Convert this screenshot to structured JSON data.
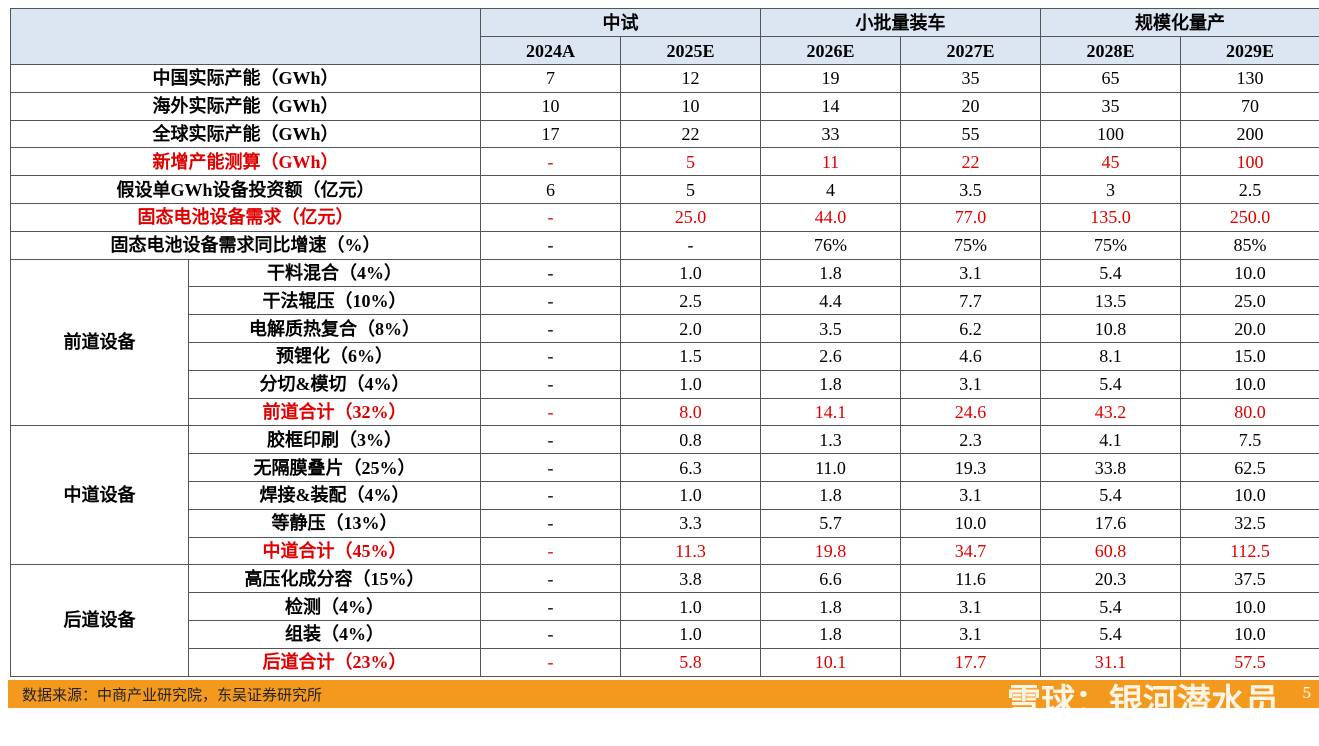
{
  "header": {
    "groups": [
      {
        "title": "中试",
        "years": [
          "2024A",
          "2025E"
        ]
      },
      {
        "title": "小批量装车",
        "years": [
          "2026E",
          "2027E"
        ]
      },
      {
        "title": "规模化量产",
        "years": [
          "2028E",
          "2029E"
        ]
      }
    ]
  },
  "table": {
    "rows": [
      {
        "label": "中国实际产能（GWh）",
        "cells": [
          "7",
          "12",
          "19",
          "35",
          "65",
          "130"
        ],
        "highlight": false
      },
      {
        "label": "海外实际产能（GWh）",
        "cells": [
          "10",
          "10",
          "14",
          "20",
          "35",
          "70"
        ],
        "highlight": false
      },
      {
        "label": "全球实际产能（GWh）",
        "cells": [
          "17",
          "22",
          "33",
          "55",
          "100",
          "200"
        ],
        "highlight": false
      },
      {
        "label": "新增产能测算（GWh）",
        "cells": [
          "-",
          "5",
          "11",
          "22",
          "45",
          "100"
        ],
        "highlight": true
      },
      {
        "label": "假设单GWh设备投资额（亿元）",
        "cells": [
          "6",
          "5",
          "4",
          "3.5",
          "3",
          "2.5"
        ],
        "highlight": false
      },
      {
        "label": "固态电池设备需求（亿元）",
        "cells": [
          "-",
          "25.0",
          "44.0",
          "77.0",
          "135.0",
          "250.0"
        ],
        "highlight": true
      },
      {
        "label": "固态电池设备需求同比增速（%）",
        "cells": [
          "-",
          "-",
          "76%",
          "75%",
          "75%",
          "85%"
        ],
        "highlight": false
      }
    ],
    "sections": [
      {
        "name": "前道设备",
        "rows": [
          {
            "label": "干料混合（4%）",
            "cells": [
              "-",
              "1.0",
              "1.8",
              "3.1",
              "5.4",
              "10.0"
            ],
            "highlight": false
          },
          {
            "label": "干法辊压（10%）",
            "cells": [
              "-",
              "2.5",
              "4.4",
              "7.7",
              "13.5",
              "25.0"
            ],
            "highlight": false
          },
          {
            "label": "电解质热复合（8%）",
            "cells": [
              "-",
              "2.0",
              "3.5",
              "6.2",
              "10.8",
              "20.0"
            ],
            "highlight": false
          },
          {
            "label": "预锂化（6%）",
            "cells": [
              "-",
              "1.5",
              "2.6",
              "4.6",
              "8.1",
              "15.0"
            ],
            "highlight": false
          },
          {
            "label": "分切&模切（4%）",
            "cells": [
              "-",
              "1.0",
              "1.8",
              "3.1",
              "5.4",
              "10.0"
            ],
            "highlight": false
          },
          {
            "label": "前道合计（32%）",
            "cells": [
              "-",
              "8.0",
              "14.1",
              "24.6",
              "43.2",
              "80.0"
            ],
            "highlight": true
          }
        ]
      },
      {
        "name": "中道设备",
        "rows": [
          {
            "label": "胶框印刷（3%）",
            "cells": [
              "-",
              "0.8",
              "1.3",
              "2.3",
              "4.1",
              "7.5"
            ],
            "highlight": false
          },
          {
            "label": "无隔膜叠片（25%）",
            "cells": [
              "-",
              "6.3",
              "11.0",
              "19.3",
              "33.8",
              "62.5"
            ],
            "highlight": false
          },
          {
            "label": "焊接&装配（4%）",
            "cells": [
              "-",
              "1.0",
              "1.8",
              "3.1",
              "5.4",
              "10.0"
            ],
            "highlight": false
          },
          {
            "label": "等静压（13%）",
            "cells": [
              "-",
              "3.3",
              "5.7",
              "10.0",
              "17.6",
              "32.5"
            ],
            "highlight": false
          },
          {
            "label": "中道合计（45%）",
            "cells": [
              "-",
              "11.3",
              "19.8",
              "34.7",
              "60.8",
              "112.5"
            ],
            "highlight": true
          }
        ]
      },
      {
        "name": "后道设备",
        "rows": [
          {
            "label": "高压化成分容（15%）",
            "cells": [
              "-",
              "3.8",
              "6.6",
              "11.6",
              "20.3",
              "37.5"
            ],
            "highlight": false
          },
          {
            "label": "检测（4%）",
            "cells": [
              "-",
              "1.0",
              "1.8",
              "3.1",
              "5.4",
              "10.0"
            ],
            "highlight": false
          },
          {
            "label": "组装（4%）",
            "cells": [
              "-",
              "1.0",
              "1.8",
              "3.1",
              "5.4",
              "10.0"
            ],
            "highlight": false
          },
          {
            "label": "后道合计（23%）",
            "cells": [
              "-",
              "5.8",
              "10.1",
              "17.7",
              "31.1",
              "57.5"
            ],
            "highlight": true
          }
        ]
      }
    ]
  },
  "footer": {
    "source": "数据来源：中商产业研究院，东吴证券研究所",
    "page": "5",
    "watermark": "雪球：银河潜水员"
  }
}
